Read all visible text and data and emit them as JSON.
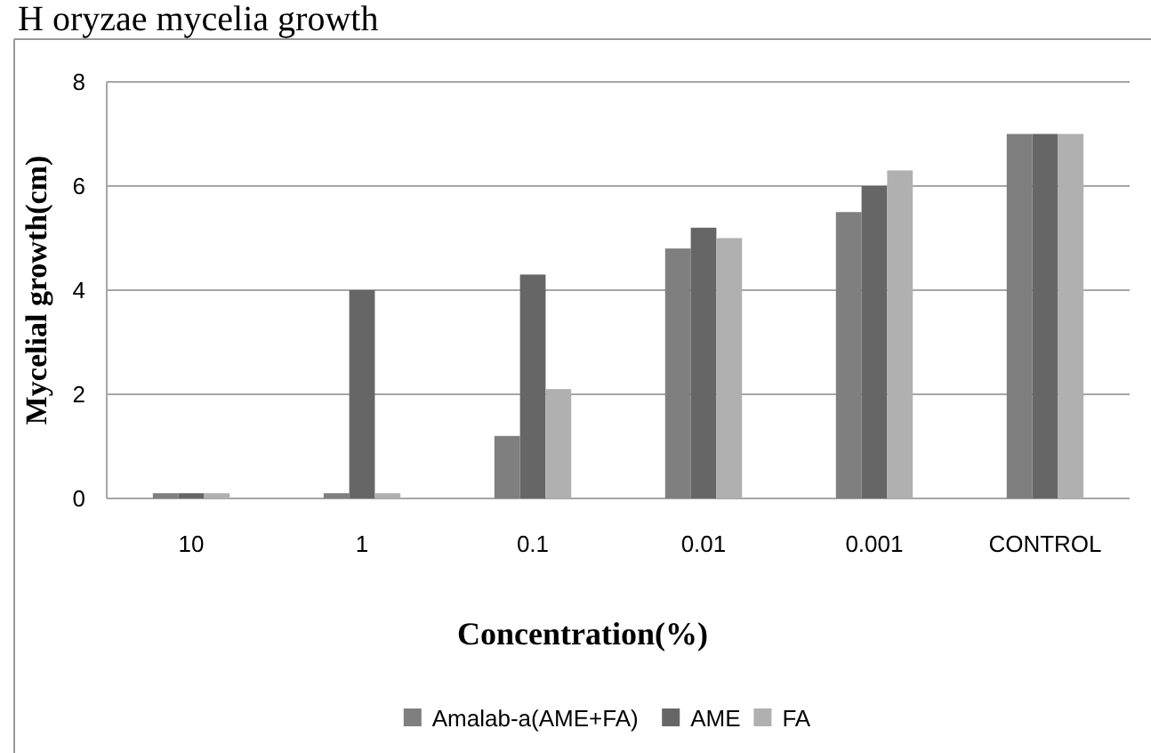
{
  "chart_data": {
    "type": "bar",
    "title": "H oryzae mycelia growth",
    "xlabel": "Concentration(%)",
    "ylabel": "Mycelial growth(cm)",
    "categories": [
      "10",
      "1",
      "0.1",
      "0.01",
      "0.001",
      "CONTROL"
    ],
    "series": [
      {
        "name": "Amalab-a(AME+FA)",
        "color": "#7f7f7f",
        "values": [
          0.1,
          0.1,
          1.2,
          4.8,
          5.5,
          7
        ]
      },
      {
        "name": "AME",
        "color": "#666666",
        "values": [
          0.1,
          4.0,
          4.3,
          5.2,
          6.0,
          7
        ]
      },
      {
        "name": "FA",
        "color": "#b0b0b0",
        "values": [
          0.1,
          0.1,
          2.1,
          5.0,
          6.3,
          7
        ]
      }
    ],
    "ylim": [
      0,
      8
    ],
    "yticks": [
      0,
      2,
      4,
      6,
      8
    ],
    "grid": "y",
    "legend": "bottom"
  }
}
